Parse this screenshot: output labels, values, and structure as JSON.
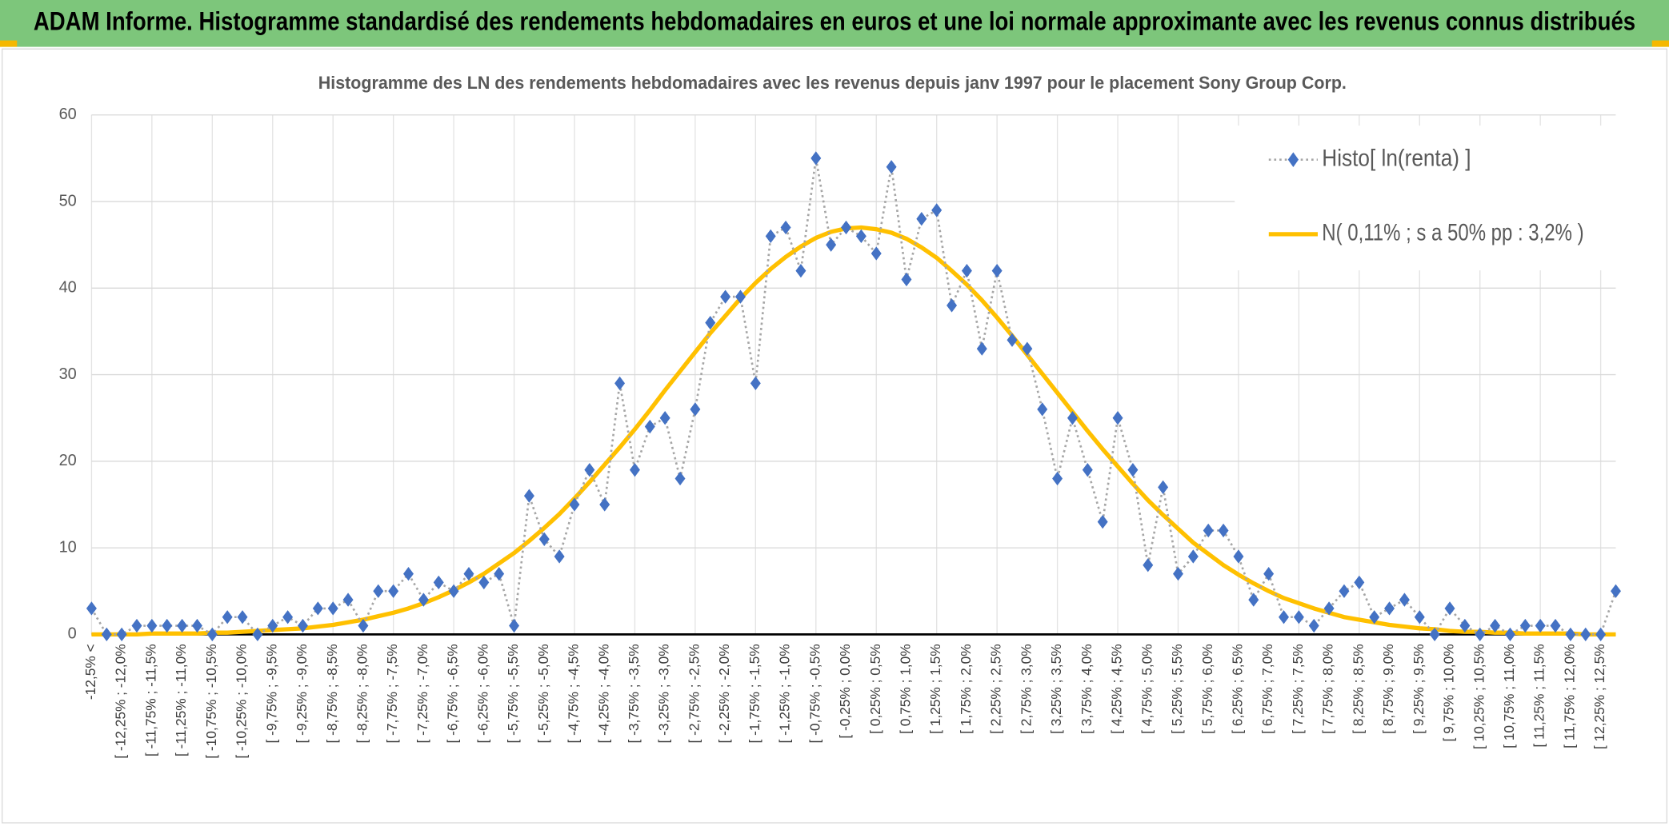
{
  "chart_data": {
    "type": "line",
    "header": "ADAM Informe. Histogramme standardisé des rendements hebdomadaires en euros et une loi normale approximante avec les revenus connus distribués",
    "title": "Histogramme des LN des rendements hebdomadaires avec les revenus depuis janv 1997 pour le placement Sony Group Corp.",
    "categories": [
      "-12,5% <",
      null,
      "[ -12,25% ; -12,0%",
      null,
      "[ -11,75% ; -11,5%",
      null,
      "[ -11,25% ; -11,0%",
      null,
      "[ -10,75% ; -10,5%",
      null,
      "[ -10,25% ; -10,0%",
      null,
      "[ -9,75% ; -9,5%",
      null,
      "[ -9,25% ; -9,0%",
      null,
      "[ -8,75% ; -8,5%",
      null,
      "[ -8,25% ; -8,0%",
      null,
      "[ -7,75% ; -7,5%",
      null,
      "[ -7,25% ; -7,0%",
      null,
      "[ -6,75% ; -6,5%",
      null,
      "[ -6,25% ; -6,0%",
      null,
      "[ -5,75% ; -5,5%",
      null,
      "[ -5,25% ; -5,0%",
      null,
      "[ -4,75% ; -4,5%",
      null,
      "[ -4,25% ; -4,0%",
      null,
      "[ -3,75% ; -3,5%",
      null,
      "[ -3,25% ; -3,0%",
      null,
      "[ -2,75% ; -2,5%",
      null,
      "[ -2,25% ; -2,0%",
      null,
      "[ -1,75% ; -1,5%",
      null,
      "[ -1,25% ; -1,0%",
      null,
      "[ -0,75% ; -0,5%",
      null,
      "[ -0,25% ; 0,0%",
      null,
      "[ 0,25% ; 0,5%",
      null,
      "[ 0,75% ; 1,0%",
      null,
      "[ 1,25% ; 1,5%",
      null,
      "[ 1,75% ; 2,0%",
      null,
      "[ 2,25% ; 2,5%",
      null,
      "[ 2,75% ; 3,0%",
      null,
      "[ 3,25% ; 3,5%",
      null,
      "[ 3,75% ; 4,0%",
      null,
      "[ 4,25% ; 4,5%",
      null,
      "[ 4,75% ; 5,0%",
      null,
      "[ 5,25% ; 5,5%",
      null,
      "[ 5,75% ; 6,0%",
      null,
      "[ 6,25% ; 6,5%",
      null,
      "[ 6,75% ; 7,0%",
      null,
      "[ 7,25% ; 7,5%",
      null,
      "[ 7,75% ; 8,0%",
      null,
      "[ 8,25% ; 8,5%",
      null,
      "[ 8,75% ; 9,0%",
      null,
      "[ 9,25% ; 9,5%",
      null,
      "[ 9,75% ; 10,0%",
      null,
      "[ 10,25% ; 10,5%",
      null,
      "[ 10,75% ; 11,0%",
      null,
      "[ 11,25% ; 11,5%",
      null,
      "[ 11,75% ; 12,0%",
      null,
      "[ 12,25% ; 12,5%",
      null
    ],
    "series": [
      {
        "name": "Histo[ ln(renta) ]",
        "color": "#4472c4",
        "line_color": "#a6a6a6",
        "marker": "diamond",
        "values": [
          3,
          0,
          0,
          1,
          1,
          1,
          1,
          1,
          0,
          2,
          2,
          0,
          1,
          2,
          1,
          3,
          3,
          4,
          1,
          5,
          5,
          7,
          4,
          6,
          5,
          7,
          6,
          7,
          1,
          16,
          11,
          9,
          15,
          19,
          15,
          29,
          19,
          24,
          25,
          18,
          26,
          36,
          39,
          39,
          29,
          46,
          47,
          42,
          55,
          45,
          47,
          46,
          44,
          54,
          41,
          48,
          49,
          38,
          42,
          33,
          42,
          34,
          33,
          26,
          18,
          25,
          19,
          13,
          25,
          19,
          8,
          17,
          7,
          9,
          12,
          12,
          9,
          4,
          7,
          2,
          2,
          1,
          3,
          5,
          6,
          2,
          3,
          4,
          2,
          0,
          3,
          1,
          0,
          1,
          0,
          1,
          1,
          1,
          0,
          0,
          0,
          5
        ]
      },
      {
        "name": "N( 0,11% ; s a 50% pp : 3,2% )",
        "color": "#ffc000",
        "values": [
          0.0,
          0.0,
          0.0,
          0.0,
          0.1,
          0.1,
          0.1,
          0.1,
          0.2,
          0.2,
          0.3,
          0.4,
          0.5,
          0.6,
          0.7,
          0.9,
          1.1,
          1.4,
          1.7,
          2.1,
          2.5,
          3.0,
          3.6,
          4.3,
          5.1,
          6.0,
          7.0,
          8.2,
          9.4,
          10.8,
          12.3,
          13.9,
          15.7,
          17.6,
          19.6,
          21.6,
          23.7,
          25.9,
          28.2,
          30.4,
          32.6,
          34.8,
          36.8,
          38.8,
          40.6,
          42.2,
          43.6,
          44.8,
          45.8,
          46.5,
          46.9,
          47.0,
          46.8,
          46.4,
          45.7,
          44.7,
          43.5,
          42.0,
          40.4,
          38.6,
          36.6,
          34.5,
          32.3,
          30.1,
          27.9,
          25.7,
          23.5,
          21.4,
          19.4,
          17.4,
          15.5,
          13.8,
          12.2,
          10.6,
          9.3,
          8.0,
          6.9,
          5.9,
          5.0,
          4.2,
          3.6,
          3.0,
          2.5,
          2.0,
          1.7,
          1.4,
          1.1,
          0.9,
          0.7,
          0.6,
          0.4,
          0.3,
          0.3,
          0.2,
          0.2,
          0.1,
          0.1,
          0.1,
          0.1,
          0.0,
          0.0,
          0.0
        ]
      }
    ],
    "ylim": [
      0,
      60
    ],
    "yticks": [
      0,
      10,
      20,
      30,
      40,
      50,
      60
    ],
    "grid": true,
    "legend": "top-right"
  }
}
